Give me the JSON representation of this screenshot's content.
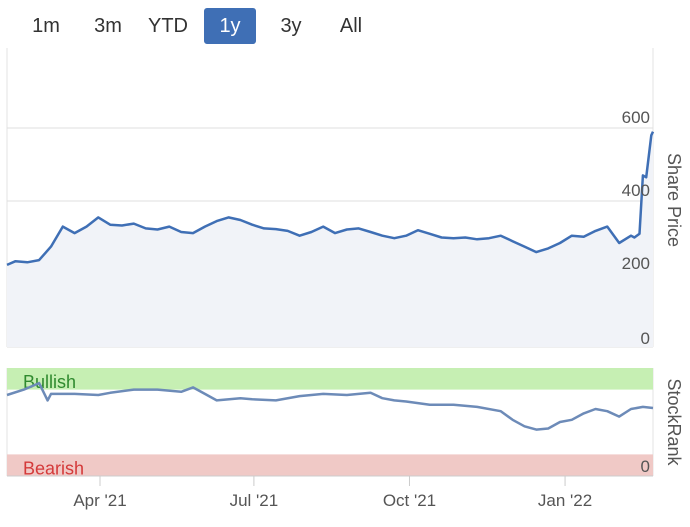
{
  "range_buttons": [
    {
      "label": "1m",
      "active": false
    },
    {
      "label": "3m",
      "active": false
    },
    {
      "label": "YTD",
      "active": false
    },
    {
      "label": "1y",
      "active": true
    },
    {
      "label": "3y",
      "active": false
    },
    {
      "label": "All",
      "active": false
    }
  ],
  "colors": {
    "accent": "#3f6fb5",
    "price_line": "#3f6fb5",
    "price_fill": "#f1f3f8",
    "rank_line": "#6d8bb8",
    "bullish_fill": "#c6efb3",
    "bullish_text": "#2f8a2f",
    "bearish_fill": "#f0c9c6",
    "bearish_text": "#d43a3a"
  },
  "chart_data": [
    {
      "type": "area",
      "ylabel": "Share Price",
      "ylim": [
        0,
        600
      ],
      "yticks": [
        0,
        200,
        400,
        600
      ],
      "grid": true,
      "x": [
        "2021-02-05",
        "2021-02-10",
        "2021-02-17",
        "2021-02-24",
        "2021-03-03",
        "2021-03-10",
        "2021-03-17",
        "2021-03-24",
        "2021-03-31",
        "2021-04-07",
        "2021-04-14",
        "2021-04-21",
        "2021-04-28",
        "2021-05-05",
        "2021-05-12",
        "2021-05-19",
        "2021-05-26",
        "2021-06-02",
        "2021-06-09",
        "2021-06-16",
        "2021-06-23",
        "2021-06-30",
        "2021-07-07",
        "2021-07-14",
        "2021-07-21",
        "2021-07-28",
        "2021-08-04",
        "2021-08-11",
        "2021-08-18",
        "2021-08-25",
        "2021-09-01",
        "2021-09-08",
        "2021-09-15",
        "2021-09-22",
        "2021-09-29",
        "2021-10-06",
        "2021-10-13",
        "2021-10-20",
        "2021-10-27",
        "2021-11-03",
        "2021-11-10",
        "2021-11-17",
        "2021-11-24",
        "2021-12-01",
        "2021-12-08",
        "2021-12-15",
        "2021-12-22",
        "2021-12-29",
        "2022-01-05",
        "2022-01-12",
        "2022-01-19",
        "2022-01-26",
        "2022-02-02",
        "2022-02-09",
        "2022-02-11",
        "2022-02-14",
        "2022-02-16",
        "2022-02-18",
        "2022-02-21",
        "2022-02-22"
      ],
      "series": [
        {
          "values": [
            225,
            235,
            232,
            238,
            275,
            330,
            312,
            330,
            355,
            335,
            333,
            338,
            325,
            322,
            330,
            315,
            312,
            330,
            345,
            355,
            348,
            335,
            325,
            323,
            318,
            305,
            315,
            330,
            312,
            322,
            325,
            315,
            305,
            298,
            305,
            320,
            310,
            300,
            298,
            300,
            295,
            298,
            305,
            290,
            275,
            260,
            270,
            285,
            305,
            302,
            318,
            330,
            285,
            305,
            300,
            310,
            470,
            465,
            580,
            590
          ]
        }
      ]
    },
    {
      "type": "line",
      "ylabel": "StockRank",
      "yticks": [
        0
      ],
      "zones": [
        {
          "label": "Bullish",
          "from": 80,
          "to": 100
        },
        {
          "label": "Bearish",
          "from": 0,
          "to": 20
        }
      ],
      "ylim": [
        0,
        100
      ],
      "x": [
        "2021-02-05",
        "2021-02-15",
        "2021-02-24",
        "2021-03-01",
        "2021-03-03",
        "2021-03-17",
        "2021-03-31",
        "2021-04-07",
        "2021-04-21",
        "2021-05-05",
        "2021-05-19",
        "2021-05-26",
        "2021-06-02",
        "2021-06-09",
        "2021-06-23",
        "2021-06-30",
        "2021-07-14",
        "2021-07-28",
        "2021-08-11",
        "2021-08-25",
        "2021-09-08",
        "2021-09-15",
        "2021-09-22",
        "2021-09-29",
        "2021-10-13",
        "2021-10-27",
        "2021-11-10",
        "2021-11-24",
        "2021-12-01",
        "2021-12-08",
        "2021-12-15",
        "2021-12-22",
        "2021-12-29",
        "2022-01-05",
        "2022-01-12",
        "2022-01-19",
        "2022-01-26",
        "2022-02-02",
        "2022-02-09",
        "2022-02-16",
        "2022-02-22"
      ],
      "series": [
        {
          "values": [
            75,
            80,
            86,
            70,
            76,
            76,
            75,
            77,
            80,
            80,
            78,
            82,
            76,
            70,
            72,
            71,
            70,
            74,
            76,
            75,
            77,
            72,
            70,
            69,
            66,
            66,
            64,
            60,
            52,
            46,
            43,
            44,
            50,
            52,
            58,
            62,
            60,
            55,
            62,
            64,
            63
          ]
        }
      ]
    }
  ],
  "x_ticks": [
    "Apr '21",
    "Jul '21",
    "Oct '21",
    "Jan '22"
  ]
}
